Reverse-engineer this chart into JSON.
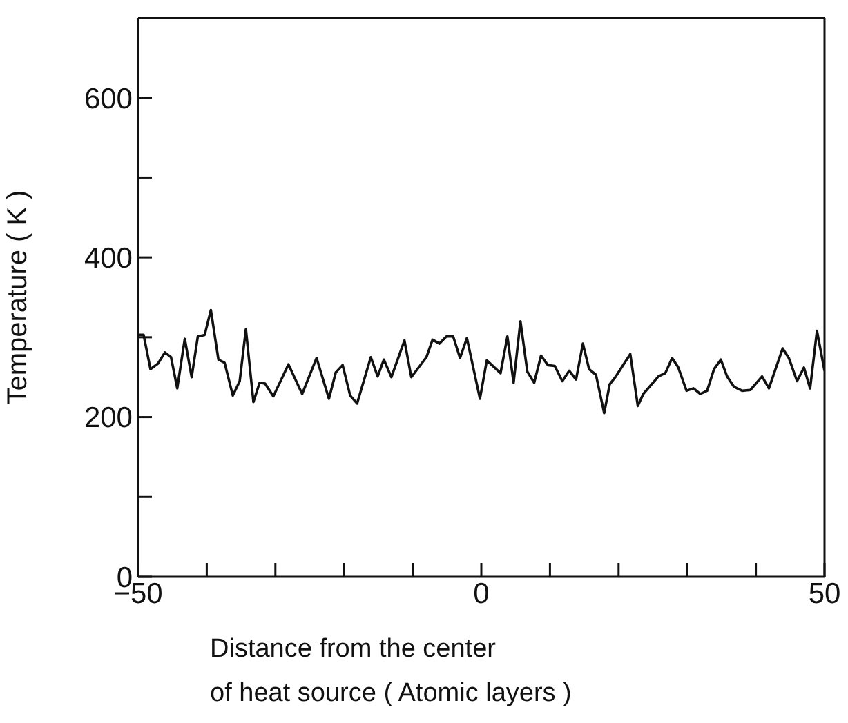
{
  "chart_data": {
    "type": "line",
    "xlabel": "Distance from the center\nof heat source  ( Atomic layers )",
    "ylabel": "Temperature  ( K )",
    "xlim": [
      -50,
      50
    ],
    "xticks": [
      -50,
      {
        "value": -40,
        "label": null
      },
      {
        "value": -30,
        "label": null
      },
      {
        "value": -20,
        "label": null
      },
      {
        "value": -10,
        "label": null
      },
      0,
      {
        "value": 10,
        "label": null
      },
      {
        "value": 20,
        "label": null
      },
      {
        "value": 30,
        "label": null
      },
      {
        "value": 40,
        "label": null
      },
      50
    ],
    "ylim": [
      0,
      700
    ],
    "yticks": [
      0,
      {
        "value": 100,
        "label": null
      },
      200,
      {
        "value": 300,
        "label": null
      },
      400,
      {
        "value": 500,
        "label": null
      },
      600
    ],
    "legend": false,
    "marker": "none",
    "line_style": "solid",
    "series": [
      {
        "color": "#111111",
        "x": [
          -50,
          -49.2,
          -48.2,
          -47.1,
          -46.1,
          -45.2,
          -44.3,
          -43.2,
          -42.2,
          -41.3,
          -40.3,
          -39.4,
          -38.3,
          -37.4,
          -36.2,
          -35.2,
          -34.3,
          -33.2,
          -32.3,
          -31.5,
          -30.3,
          -28.1,
          -26.1,
          -24,
          -22.2,
          -21.2,
          -20.2,
          -19.1,
          -18.1,
          -16.1,
          -15.1,
          -14.2,
          -13.1,
          -11.2,
          -10.2,
          -8,
          -7.1,
          -6.1,
          -5.1,
          -4.1,
          -3.1,
          -2.1,
          -0.2,
          0.8,
          2.8,
          3.8,
          4.7,
          5.7,
          6.7,
          7.7,
          8.7,
          9.7,
          10.7,
          11.8,
          12.8,
          13.8,
          14.8,
          15.7,
          16.7,
          17.9,
          18.7,
          19.6,
          21.7,
          22.8,
          23.6,
          25.8,
          26.8,
          27.8,
          28.7,
          29.9,
          30.9,
          31.9,
          32.9,
          33.9,
          34.9,
          35.8,
          36.8,
          38,
          39.2,
          40.9,
          41.9,
          43.9,
          44.8,
          46,
          47,
          47.9,
          48.9,
          50
        ],
        "values": [
          303,
          303,
          260,
          267,
          281,
          275,
          236,
          298,
          250,
          301,
          303,
          334,
          272,
          268,
          227,
          245,
          310,
          219,
          243,
          242,
          226,
          266,
          229,
          274,
          223,
          256,
          265,
          227,
          217,
          275,
          251,
          272,
          250,
          296,
          250,
          275,
          297,
          292,
          301,
          301,
          274,
          299,
          223,
          271,
          255,
          301,
          243,
          320,
          257,
          243,
          277,
          265,
          264,
          245,
          258,
          247,
          292,
          260,
          253,
          205,
          241,
          251,
          279,
          214,
          229,
          251,
          255,
          274,
          262,
          233,
          236,
          229,
          233,
          260,
          272,
          251,
          238,
          233,
          234,
          251,
          236,
          286,
          274,
          245,
          262,
          236,
          308,
          258
        ]
      }
    ]
  }
}
